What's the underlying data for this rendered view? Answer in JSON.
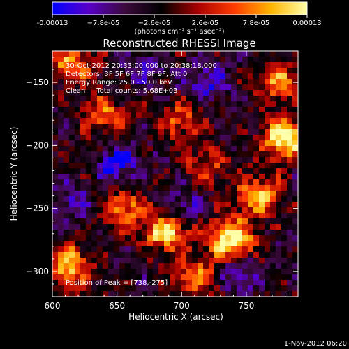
{
  "chart_data": {
    "type": "heatmap",
    "title": "Reconstructed RHESSI Image",
    "xlabel": "Heliocentric X (arcsec)",
    "ylabel": "Heliocentric Y (arcsec)",
    "xlim": [
      600,
      790
    ],
    "ylim": [
      -320,
      -125
    ],
    "x_ticks": [
      600,
      650,
      700,
      750
    ],
    "y_ticks": [
      -150,
      -200,
      -250,
      -300
    ],
    "colorbar": {
      "range": [
        -0.00013,
        0.00013
      ],
      "tick_labels": [
        "-0.00013",
        "−7.8e-05",
        "−2.6e-05",
        "2.6e-05",
        "7.8e-05",
        "0.00013"
      ],
      "units_label": "(photons cm⁻² s⁻¹ asec⁻²)",
      "colors": [
        "#0000ff",
        "#5a00c8",
        "#3c0a3c",
        "#000000",
        "#aa0000",
        "#ff3c00",
        "#ffb400",
        "#ffffaa"
      ]
    },
    "info_lines": [
      "30-Oct-2012 20:33:00.000 to 20:38:18.000",
      "Detectors: 3F 5F 6F 7F 8F 9F, Att 0",
      "Energy Range: 25.0 - 50.0 keV",
      "Clean     Total counts: 5.68E+03"
    ],
    "peak_label": "Position of Peak = [738,-275]",
    "peak_position": [
      738,
      -275
    ],
    "hotspots": [
      {
        "x": 738,
        "y": -275,
        "strength": 1.0
      },
      {
        "x": 780,
        "y": -195,
        "strength": 0.95
      },
      {
        "x": 688,
        "y": -268,
        "strength": 0.85
      },
      {
        "x": 612,
        "y": -295,
        "strength": 0.8
      },
      {
        "x": 760,
        "y": -240,
        "strength": 0.7
      },
      {
        "x": 640,
        "y": -175,
        "strength": 0.55
      },
      {
        "x": 700,
        "y": -180,
        "strength": 0.5
      },
      {
        "x": 615,
        "y": -135,
        "strength": 0.6
      },
      {
        "x": 655,
        "y": -250,
        "strength": 0.55
      },
      {
        "x": 710,
        "y": -305,
        "strength": 0.6
      },
      {
        "x": 775,
        "y": -150,
        "strength": 0.6
      },
      {
        "x": 720,
        "y": -215,
        "strength": 0.4
      }
    ],
    "coolspots": [
      {
        "x": 650,
        "y": -215,
        "strength": 0.9
      },
      {
        "x": 720,
        "y": -150,
        "strength": 0.8
      },
      {
        "x": 700,
        "y": -250,
        "strength": 0.7
      },
      {
        "x": 745,
        "y": -300,
        "strength": 0.8
      },
      {
        "x": 615,
        "y": -245,
        "strength": 0.6
      },
      {
        "x": 670,
        "y": -140,
        "strength": 0.5
      }
    ]
  },
  "footer_date": "1-Nov-2012 06:20"
}
